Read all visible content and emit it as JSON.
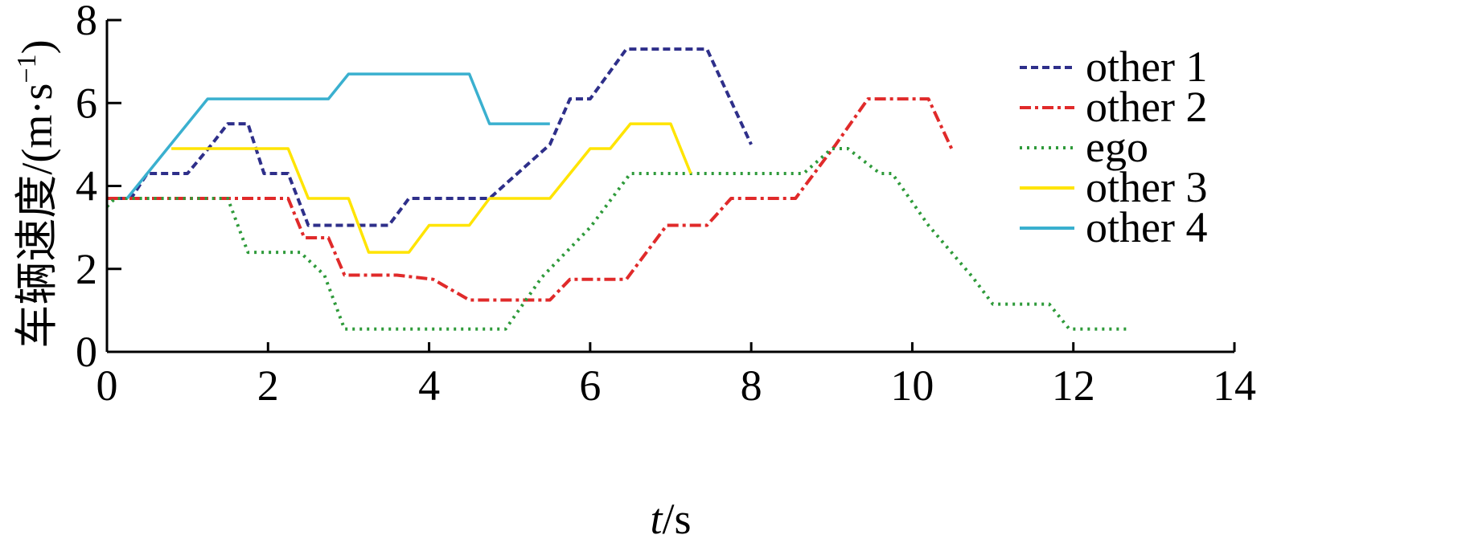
{
  "chart_data": {
    "type": "line",
    "xlabel": {
      "italic": "t",
      "rest": "/s"
    },
    "ylabel": {
      "main": "车辆速度/(m·s",
      "sup": "−1",
      "close": ")"
    },
    "xlim": [
      0,
      14
    ],
    "ylim": [
      0,
      8
    ],
    "xticks": [
      "0",
      "2",
      "4",
      "6",
      "8",
      "10",
      "12",
      "14"
    ],
    "yticks": [
      "0",
      "2",
      "4",
      "6",
      "8"
    ],
    "grid": false,
    "legend_position": "top-right",
    "series": [
      {
        "name": "other 1",
        "color": "#2e2f8a",
        "style": "short-dash",
        "points": [
          [
            0,
            3.7
          ],
          [
            0.3,
            3.7
          ],
          [
            0.5,
            4.3
          ],
          [
            1.0,
            4.3
          ],
          [
            1.3,
            5.0
          ],
          [
            1.5,
            5.5
          ],
          [
            1.75,
            5.5
          ],
          [
            1.95,
            4.3
          ],
          [
            2.25,
            4.3
          ],
          [
            2.5,
            3.05
          ],
          [
            3.05,
            3.05
          ],
          [
            3.5,
            3.05
          ],
          [
            3.75,
            3.7
          ],
          [
            4.4,
            3.7
          ],
          [
            4.75,
            3.7
          ],
          [
            5.5,
            5.0
          ],
          [
            5.75,
            6.1
          ],
          [
            6.0,
            6.1
          ],
          [
            6.45,
            7.3
          ],
          [
            7.45,
            7.3
          ],
          [
            8.0,
            5.0
          ]
        ]
      },
      {
        "name": "other 2",
        "color": "#e02a2a",
        "style": "dash-dot",
        "points": [
          [
            0,
            3.7
          ],
          [
            2.25,
            3.7
          ],
          [
            2.45,
            2.75
          ],
          [
            2.75,
            2.75
          ],
          [
            2.95,
            1.85
          ],
          [
            3.6,
            1.85
          ],
          [
            4.05,
            1.75
          ],
          [
            4.5,
            1.25
          ],
          [
            5.5,
            1.25
          ],
          [
            5.75,
            1.75
          ],
          [
            6.45,
            1.75
          ],
          [
            6.95,
            3.05
          ],
          [
            7.45,
            3.05
          ],
          [
            7.75,
            3.7
          ],
          [
            8.55,
            3.7
          ],
          [
            9.05,
            5.0
          ],
          [
            9.45,
            6.1
          ],
          [
            10.2,
            6.1
          ],
          [
            10.5,
            4.85
          ]
        ]
      },
      {
        "name": "ego",
        "color": "#2e9a3a",
        "style": "dotted",
        "points": [
          [
            0,
            3.5
          ],
          [
            0.1,
            3.7
          ],
          [
            1.5,
            3.7
          ],
          [
            1.75,
            2.4
          ],
          [
            2.4,
            2.4
          ],
          [
            2.7,
            1.85
          ],
          [
            2.95,
            0.55
          ],
          [
            4.95,
            0.55
          ],
          [
            5.4,
            1.8
          ],
          [
            6.0,
            3.0
          ],
          [
            6.5,
            4.3
          ],
          [
            7.0,
            4.3
          ],
          [
            8.65,
            4.3
          ],
          [
            9.0,
            4.9
          ],
          [
            9.2,
            4.9
          ],
          [
            9.6,
            4.3
          ],
          [
            9.75,
            4.3
          ],
          [
            10.2,
            3.05
          ],
          [
            10.75,
            1.8
          ],
          [
            11.0,
            1.15
          ],
          [
            11.7,
            1.15
          ],
          [
            11.95,
            0.55
          ],
          [
            12.7,
            0.55
          ]
        ]
      },
      {
        "name": "other 3",
        "color": "#ffe400",
        "style": "solid",
        "points": [
          [
            0.8,
            4.9
          ],
          [
            2.25,
            4.9
          ],
          [
            2.5,
            3.7
          ],
          [
            3.0,
            3.7
          ],
          [
            3.25,
            2.4
          ],
          [
            3.75,
            2.4
          ],
          [
            4.0,
            3.05
          ],
          [
            4.5,
            3.05
          ],
          [
            4.75,
            3.7
          ],
          [
            5.5,
            3.7
          ],
          [
            6.0,
            4.9
          ],
          [
            6.25,
            4.9
          ],
          [
            6.5,
            5.5
          ],
          [
            7.0,
            5.5
          ],
          [
            7.25,
            4.3
          ]
        ]
      },
      {
        "name": "other 4",
        "color": "#3ab0cf",
        "style": "solid",
        "points": [
          [
            0.25,
            3.7
          ],
          [
            0.75,
            4.9
          ],
          [
            1.25,
            6.1
          ],
          [
            2.75,
            6.1
          ],
          [
            3.0,
            6.7
          ],
          [
            4.5,
            6.7
          ],
          [
            4.75,
            5.5
          ],
          [
            5.5,
            5.5
          ]
        ]
      }
    ]
  }
}
